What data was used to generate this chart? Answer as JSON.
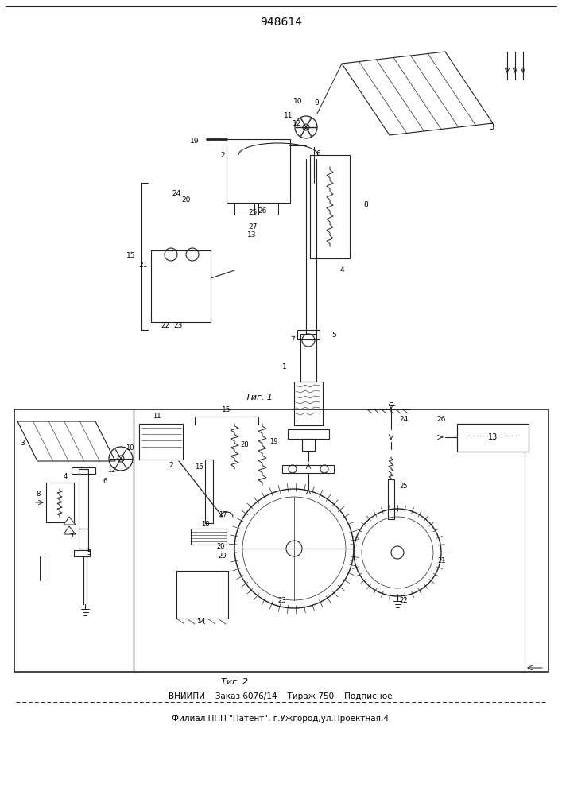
{
  "patent_number": "948614",
  "fig1_label": "Τиг. 1",
  "fig2_label": "Τиг. 2",
  "footer_line1": "ВНИИПИ    Заказ 6076/14    Тираж 750    Подписное",
  "footer_line2": "Филиал ППП \"Патент\", г.Ужгород,ул.Проектная,4",
  "bg_color": "#ffffff",
  "line_color": "#222222"
}
